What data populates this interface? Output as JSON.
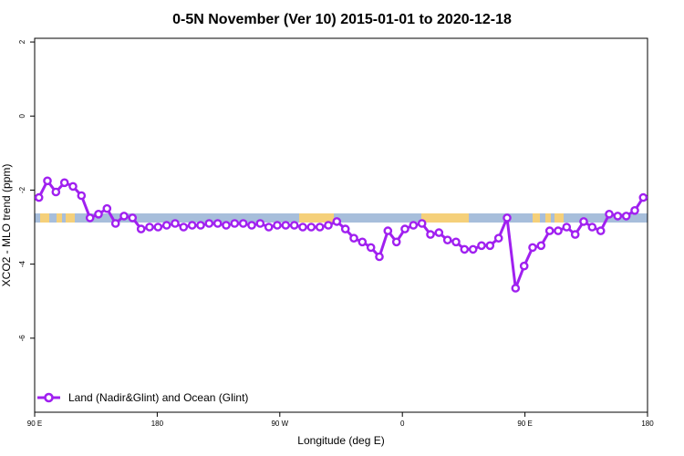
{
  "chart_data": {
    "type": "line",
    "title": "0-5N November (Ver 10)   2015-01-01 to 2020-12-18",
    "xlabel": "Longitude (deg E)",
    "ylabel": "XCO2 - MLO trend (ppm)",
    "xlim": [
      90,
      450
    ],
    "ylim": [
      -8,
      2.1
    ],
    "x_ticks": [
      {
        "value": 90,
        "label": "90 E"
      },
      {
        "value": 162,
        "label": "180"
      },
      {
        "value": 234,
        "label": "90 W"
      },
      {
        "value": 306,
        "label": "0"
      },
      {
        "value": 378,
        "label": "90 E"
      },
      {
        "value": 450,
        "label": "180"
      }
    ],
    "y_ticks": [
      {
        "value": 2,
        "label": "2"
      },
      {
        "value": 0,
        "label": "0"
      },
      {
        "value": -2,
        "label": "-2"
      },
      {
        "value": -4,
        "label": "-4"
      },
      {
        "value": -6,
        "label": "-6"
      }
    ],
    "legend": {
      "position": "bottom-left",
      "entries": [
        "Land (Nadir&Glint) and Ocean (Glint)"
      ]
    },
    "series": [
      {
        "name": "Land (Nadir&Glint) and Ocean (Glint)",
        "color": "#a020f0",
        "x": [
          92.5,
          97.5,
          102.5,
          107.5,
          112.5,
          117.5,
          122.5,
          127.5,
          132.5,
          137.5,
          142.5,
          147.5,
          152.5,
          157.5,
          162.5,
          167.5,
          172.5,
          177.5,
          182.5,
          187.5,
          192.5,
          197.5,
          202.5,
          207.5,
          212.5,
          217.5,
          222.5,
          227.5,
          232.5,
          237.5,
          242.5,
          247.5,
          252.5,
          257.5,
          262.5,
          267.5,
          272.5,
          277.5,
          282.5,
          287.5,
          292.5,
          297.5,
          302.5,
          307.5,
          312.5,
          317.5,
          322.5,
          327.5,
          332.5,
          337.5,
          342.5,
          347.5,
          352.5,
          357.5,
          362.5,
          367.5,
          372.5,
          377.5,
          382.5,
          387.5,
          392.5,
          397.5,
          402.5,
          407.5,
          412.5,
          417.5,
          422.5,
          427.5,
          432.5,
          437.5,
          442.5,
          447.5
        ],
        "y": [
          -2.2,
          -1.75,
          -2.05,
          -1.8,
          -1.9,
          -2.15,
          -2.75,
          -2.65,
          -2.5,
          -2.9,
          -2.7,
          -2.75,
          -3.05,
          -3.0,
          -3.0,
          -2.95,
          -2.9,
          -3.0,
          -2.95,
          -2.95,
          -2.9,
          -2.9,
          -2.95,
          -2.9,
          -2.9,
          -2.95,
          -2.9,
          -3.0,
          -2.95,
          -2.95,
          -2.95,
          -3.0,
          -3.0,
          -3.0,
          -2.95,
          -2.85,
          -3.05,
          -3.3,
          -3.4,
          -3.55,
          -3.8,
          -3.1,
          -3.4,
          -3.05,
          -2.95,
          -2.9,
          -3.2,
          -3.15,
          -3.35,
          -3.4,
          -3.6,
          -3.6,
          -3.5,
          -3.5,
          -3.3,
          -2.75,
          -4.65,
          -4.05,
          -3.55,
          -3.5,
          -3.1,
          -3.1,
          -3.0,
          -3.2,
          -2.85,
          -3.0,
          -3.1,
          -2.65,
          -2.7,
          -2.7,
          -2.55,
          -2.2
        ]
      }
    ]
  }
}
